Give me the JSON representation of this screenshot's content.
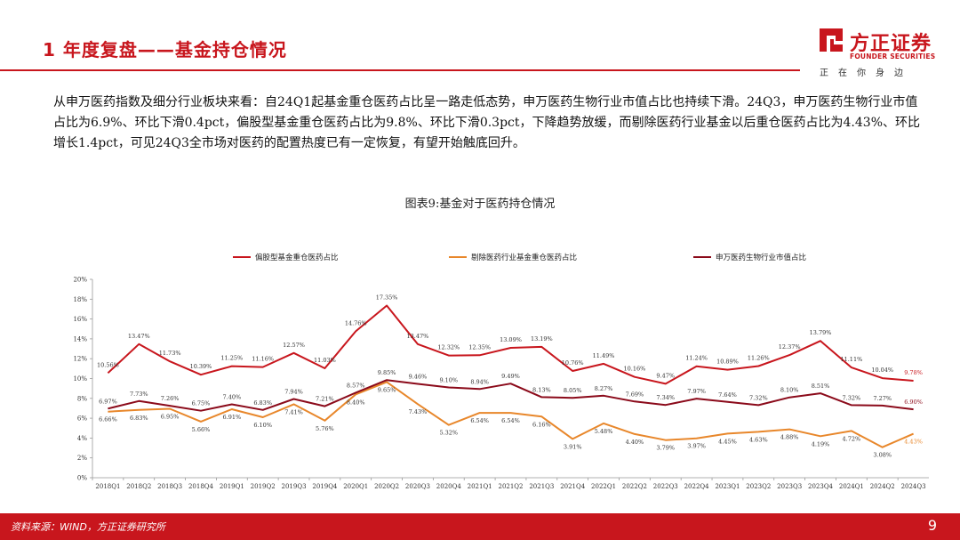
{
  "header": {
    "title": "1 年度复盘——基金持仓情况"
  },
  "logo": {
    "name": "方正证券",
    "english": "FOUNDER SECURITIES",
    "slogan": "正在你身边",
    "brand_color": "#c8161d"
  },
  "body_text": "从申万医药指数及细分行业板块来看：自24Q1起基金重仓医药占比呈一路走低态势，申万医药生物行业市值占比也持续下滑。24Q3，申万医药生物行业市值占比为6.9%、环比下滑0.4pct，偏股型基金重仓医药占比为9.8%、环比下滑0.3pct，下降趋势放缓，而剔除医药行业基金以后重仓医药占比为4.43%、环比增长1.4pct，可见24Q3全市场对医药的配置热度已有一定恢复，有望开始触底回升。",
  "chart_title": "图表9:基金对于医药持仓情况",
  "footer": {
    "source": "资料来源：WIND，方正证券研究所",
    "page": "9"
  },
  "chart_data": {
    "type": "line",
    "categories": [
      "2018Q1",
      "2018Q2",
      "2018Q3",
      "2018Q4",
      "2019Q1",
      "2019Q2",
      "2019Q3",
      "2019Q4",
      "2020Q1",
      "2020Q2",
      "2020Q3",
      "2020Q4",
      "2021Q1",
      "2021Q2",
      "2021Q3",
      "2021Q4",
      "2022Q1",
      "2022Q2",
      "2022Q3",
      "2022Q4",
      "2023Q1",
      "2023Q2",
      "2023Q3",
      "2023Q4",
      "2024Q1",
      "2024Q2",
      "2024Q3"
    ],
    "ylim": [
      0,
      20
    ],
    "yticks": [
      "0%",
      "2%",
      "4%",
      "6%",
      "8%",
      "10%",
      "12%",
      "14%",
      "16%",
      "18%",
      "20%"
    ],
    "grid": false,
    "legend_position": "top",
    "series": [
      {
        "name": "偏股型基金重仓医药占比",
        "color": "#c8161d",
        "values": [
          10.56,
          13.47,
          11.73,
          10.39,
          11.25,
          11.16,
          12.57,
          11.03,
          14.76,
          17.35,
          13.47,
          12.32,
          12.35,
          13.09,
          13.19,
          10.76,
          11.49,
          10.16,
          9.47,
          11.24,
          10.89,
          11.26,
          12.37,
          13.79,
          11.11,
          10.04,
          9.78
        ],
        "labels": [
          "10.56%",
          "13.47%",
          "11.73%",
          "10.39%",
          "11.25%",
          "11.16%",
          "12.57%",
          "11.03%",
          "14.76%",
          "17.35%",
          "13.47%",
          "12.32%",
          "12.35%",
          "13.09%",
          "13.19%",
          "10.76%",
          "11.49%",
          "10.16%",
          "9.47%",
          "11.24%",
          "10.89%",
          "11.26%",
          "12.37%",
          "13.79%",
          "11.11%",
          "10.04%",
          "9.78%"
        ]
      },
      {
        "name": "剔除医药行业基金重仓医药占比",
        "color": "#e8872b",
        "values": [
          6.66,
          6.83,
          6.95,
          5.66,
          6.91,
          6.1,
          7.41,
          5.76,
          8.4,
          9.65,
          7.43,
          5.32,
          6.54,
          6.54,
          6.16,
          3.91,
          5.48,
          4.4,
          3.79,
          3.97,
          4.45,
          4.63,
          4.88,
          4.19,
          4.72,
          3.08,
          4.43
        ],
        "labels": [
          "6.66%",
          "6.83%",
          "6.95%",
          "5.66%",
          "6.91%",
          "6.10%",
          "7.41%",
          "5.76%",
          "8.40%",
          "9.65%",
          "7.43%",
          "5.32%",
          "6.54%",
          "6.54%",
          "6.16%",
          "3.91%",
          "5.48%",
          "4.40%",
          "3.79%",
          "3.97%",
          "4.45%",
          "4.63%",
          "4.88%",
          "4.19%",
          "4.72%",
          "3.08%",
          "4.43%"
        ]
      },
      {
        "name": "申万医药生物行业市值占比",
        "color": "#8b0a1a",
        "values": [
          6.97,
          7.73,
          7.26,
          6.75,
          7.4,
          6.83,
          7.94,
          7.21,
          8.57,
          9.85,
          9.46,
          9.1,
          8.94,
          9.49,
          8.13,
          8.05,
          8.27,
          7.69,
          7.34,
          7.97,
          7.64,
          7.32,
          8.1,
          8.51,
          7.32,
          7.27,
          6.9
        ],
        "labels": [
          "6.97%",
          "7.73%",
          "7.26%",
          "6.75%",
          "7.40%",
          "6.83%",
          "7.94%",
          "7.21%",
          "8.57%",
          "9.85%",
          "9.46%",
          "9.10%",
          "8.94%",
          "9.49%",
          "8.13%",
          "8.05%",
          "8.27%",
          "7.69%",
          "7.34%",
          "7.97%",
          "7.64%",
          "7.32%",
          "8.10%",
          "8.51%",
          "7.32%",
          "7.27%",
          "6.90%"
        ]
      }
    ]
  }
}
